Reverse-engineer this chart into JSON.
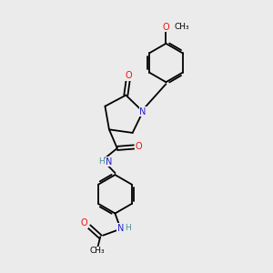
{
  "background_color": "#ebebeb",
  "bond_color": "#000000",
  "atom_colors": {
    "N": "#2020cc",
    "O": "#ee1111",
    "C": "#000000",
    "H": "#4a9090"
  },
  "font_size_atom": 7.0,
  "line_width": 1.3,
  "figsize": [
    3.0,
    3.0
  ],
  "dpi": 100
}
